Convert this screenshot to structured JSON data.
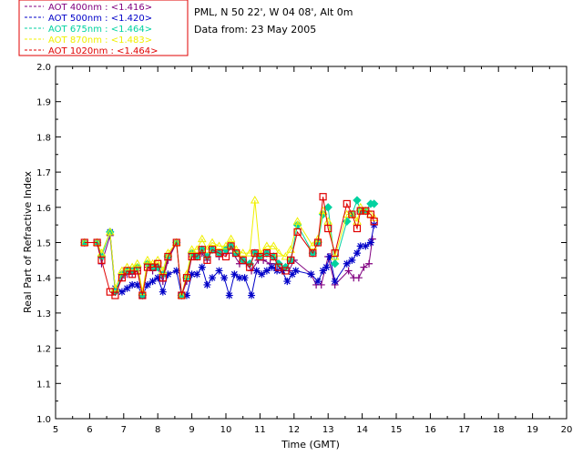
{
  "header": {
    "site": "PML, N 50 22', W 04 08', Alt 0m",
    "date": "Data from: 23 May 2005"
  },
  "chart_data": {
    "type": "line",
    "xlabel": "Time (GMT)",
    "ylabel": "Real Part of Refractive Index",
    "xlim": [
      5,
      20
    ],
    "ylim": [
      1.0,
      2.0
    ],
    "xticks": [
      "5",
      "6",
      "7",
      "8",
      "9",
      "10",
      "11",
      "12",
      "13",
      "14",
      "15",
      "16",
      "17",
      "18",
      "19",
      "20"
    ],
    "yticks": [
      "1.0",
      "1.1",
      "1.2",
      "1.3",
      "1.4",
      "1.5",
      "1.6",
      "1.7",
      "1.8",
      "1.9",
      "2.0"
    ],
    "legend_position": "top-left",
    "series": [
      {
        "name": "AOT  400nm : <1.416>",
        "color": "#800080",
        "marker": "plus",
        "points": [
          [
            5.85,
            1.5
          ],
          [
            6.22,
            1.5
          ],
          [
            6.35,
            1.44
          ],
          [
            6.6,
            1.52
          ],
          [
            6.75,
            1.36
          ],
          [
            6.95,
            1.4
          ],
          [
            7.1,
            1.41
          ],
          [
            7.25,
            1.41
          ],
          [
            7.4,
            1.42
          ],
          [
            7.55,
            1.35
          ],
          [
            7.7,
            1.43
          ],
          [
            7.85,
            1.42
          ],
          [
            8.0,
            1.43
          ],
          [
            8.15,
            1.39
          ],
          [
            8.3,
            1.45
          ],
          [
            8.55,
            1.5
          ],
          [
            8.7,
            1.35
          ],
          [
            8.85,
            1.39
          ],
          [
            9.0,
            1.46
          ],
          [
            9.15,
            1.46
          ],
          [
            9.3,
            1.47
          ],
          [
            9.45,
            1.45
          ],
          [
            9.6,
            1.48
          ],
          [
            9.8,
            1.46
          ],
          [
            10.0,
            1.47
          ],
          [
            10.2,
            1.47
          ],
          [
            10.4,
            1.44
          ],
          [
            10.6,
            1.44
          ],
          [
            10.75,
            1.42
          ],
          [
            10.95,
            1.45
          ],
          [
            11.1,
            1.45
          ],
          [
            11.3,
            1.44
          ],
          [
            11.5,
            1.44
          ],
          [
            11.7,
            1.42
          ],
          [
            11.85,
            1.42
          ],
          [
            12.0,
            1.45
          ],
          [
            12.5,
            1.41
          ],
          [
            12.65,
            1.38
          ],
          [
            12.8,
            1.38
          ],
          [
            13.0,
            1.46
          ],
          [
            13.2,
            1.38
          ],
          [
            13.6,
            1.42
          ],
          [
            13.75,
            1.4
          ],
          [
            13.9,
            1.4
          ],
          [
            14.05,
            1.43
          ],
          [
            14.2,
            1.44
          ],
          [
            14.3,
            1.51
          ]
        ]
      },
      {
        "name": "AOT  500nm : <1.420>",
        "color": "#0000c8",
        "marker": "star",
        "points": [
          [
            6.6,
            1.53
          ],
          [
            6.75,
            1.37
          ],
          [
            6.95,
            1.36
          ],
          [
            7.1,
            1.37
          ],
          [
            7.25,
            1.38
          ],
          [
            7.4,
            1.38
          ],
          [
            7.55,
            1.35
          ],
          [
            7.7,
            1.38
          ],
          [
            7.85,
            1.39
          ],
          [
            8.0,
            1.4
          ],
          [
            8.15,
            1.36
          ],
          [
            8.3,
            1.41
          ],
          [
            8.55,
            1.42
          ],
          [
            8.7,
            1.35
          ],
          [
            8.85,
            1.35
          ],
          [
            9.0,
            1.41
          ],
          [
            9.15,
            1.41
          ],
          [
            9.3,
            1.43
          ],
          [
            9.45,
            1.38
          ],
          [
            9.6,
            1.4
          ],
          [
            9.8,
            1.42
          ],
          [
            9.95,
            1.4
          ],
          [
            10.1,
            1.35
          ],
          [
            10.25,
            1.41
          ],
          [
            10.4,
            1.4
          ],
          [
            10.55,
            1.4
          ],
          [
            10.75,
            1.35
          ],
          [
            10.9,
            1.42
          ],
          [
            11.05,
            1.41
          ],
          [
            11.2,
            1.42
          ],
          [
            11.35,
            1.43
          ],
          [
            11.5,
            1.42
          ],
          [
            11.65,
            1.42
          ],
          [
            11.8,
            1.39
          ],
          [
            11.95,
            1.41
          ],
          [
            12.05,
            1.42
          ],
          [
            12.5,
            1.41
          ],
          [
            12.7,
            1.39
          ],
          [
            12.85,
            1.42
          ],
          [
            12.95,
            1.43
          ],
          [
            13.05,
            1.46
          ],
          [
            13.2,
            1.39
          ],
          [
            13.55,
            1.44
          ],
          [
            13.7,
            1.45
          ],
          [
            13.85,
            1.47
          ],
          [
            13.95,
            1.49
          ],
          [
            14.1,
            1.49
          ],
          [
            14.25,
            1.5
          ],
          [
            14.35,
            1.55
          ]
        ]
      },
      {
        "name": "AOT  675nm : <1.464>",
        "color": "#00d2a0",
        "marker": "diamond",
        "points": [
          [
            5.85,
            1.5
          ],
          [
            6.22,
            1.5
          ],
          [
            6.35,
            1.46
          ],
          [
            6.6,
            1.53
          ],
          [
            6.75,
            1.36
          ],
          [
            6.95,
            1.41
          ],
          [
            7.1,
            1.42
          ],
          [
            7.25,
            1.42
          ],
          [
            7.4,
            1.43
          ],
          [
            7.55,
            1.35
          ],
          [
            7.7,
            1.44
          ],
          [
            7.85,
            1.43
          ],
          [
            8.0,
            1.43
          ],
          [
            8.15,
            1.41
          ],
          [
            8.3,
            1.46
          ],
          [
            8.55,
            1.5
          ],
          [
            8.7,
            1.35
          ],
          [
            8.85,
            1.4
          ],
          [
            9.0,
            1.47
          ],
          [
            9.15,
            1.46
          ],
          [
            9.3,
            1.48
          ],
          [
            9.45,
            1.46
          ],
          [
            9.6,
            1.48
          ],
          [
            9.8,
            1.47
          ],
          [
            10.0,
            1.48
          ],
          [
            10.15,
            1.49
          ],
          [
            10.3,
            1.47
          ],
          [
            10.5,
            1.45
          ],
          [
            10.7,
            1.44
          ],
          [
            10.85,
            1.47
          ],
          [
            11.0,
            1.46
          ],
          [
            11.2,
            1.47
          ],
          [
            11.4,
            1.46
          ],
          [
            11.55,
            1.44
          ],
          [
            11.75,
            1.43
          ],
          [
            11.9,
            1.45
          ],
          [
            12.1,
            1.55
          ],
          [
            12.55,
            1.47
          ],
          [
            12.7,
            1.5
          ],
          [
            12.85,
            1.58
          ],
          [
            13.0,
            1.6
          ],
          [
            13.2,
            1.44
          ],
          [
            13.55,
            1.56
          ],
          [
            13.7,
            1.58
          ],
          [
            13.85,
            1.62
          ],
          [
            13.95,
            1.59
          ],
          [
            14.1,
            1.59
          ],
          [
            14.25,
            1.61
          ],
          [
            14.35,
            1.61
          ]
        ]
      },
      {
        "name": "AOT  870nm : <1.483>",
        "color": "#f0f000",
        "marker": "triangle",
        "points": [
          [
            5.85,
            1.5
          ],
          [
            6.22,
            1.5
          ],
          [
            6.35,
            1.47
          ],
          [
            6.6,
            1.53
          ],
          [
            6.75,
            1.37
          ],
          [
            6.95,
            1.42
          ],
          [
            7.1,
            1.43
          ],
          [
            7.25,
            1.43
          ],
          [
            7.4,
            1.44
          ],
          [
            7.55,
            1.36
          ],
          [
            7.7,
            1.45
          ],
          [
            7.85,
            1.44
          ],
          [
            8.0,
            1.45
          ],
          [
            8.15,
            1.42
          ],
          [
            8.3,
            1.47
          ],
          [
            8.55,
            1.5
          ],
          [
            8.7,
            1.35
          ],
          [
            8.85,
            1.41
          ],
          [
            9.0,
            1.48
          ],
          [
            9.15,
            1.48
          ],
          [
            9.3,
            1.51
          ],
          [
            9.45,
            1.48
          ],
          [
            9.6,
            1.5
          ],
          [
            9.8,
            1.49
          ],
          [
            10.0,
            1.49
          ],
          [
            10.15,
            1.51
          ],
          [
            10.3,
            1.48
          ],
          [
            10.5,
            1.47
          ],
          [
            10.7,
            1.47
          ],
          [
            10.85,
            1.62
          ],
          [
            11.0,
            1.47
          ],
          [
            11.2,
            1.49
          ],
          [
            11.4,
            1.49
          ],
          [
            11.55,
            1.47
          ],
          [
            11.75,
            1.46
          ],
          [
            11.9,
            1.48
          ],
          [
            12.1,
            1.56
          ],
          [
            12.55,
            1.49
          ],
          [
            12.7,
            1.51
          ],
          [
            12.85,
            1.59
          ],
          [
            13.0,
            1.56
          ],
          [
            13.2,
            1.46
          ],
          [
            13.55,
            1.58
          ],
          [
            13.7,
            1.58
          ],
          [
            13.85,
            1.56
          ],
          [
            13.95,
            1.6
          ],
          [
            14.1,
            1.59
          ],
          [
            14.25,
            1.58
          ],
          [
            14.35,
            1.57
          ]
        ]
      },
      {
        "name": "AOT 1020nm : <1.464>",
        "color": "#e00000",
        "marker": "square",
        "points": [
          [
            5.85,
            1.5
          ],
          [
            6.22,
            1.5
          ],
          [
            6.35,
            1.45
          ],
          [
            6.6,
            1.36
          ],
          [
            6.75,
            1.35
          ],
          [
            6.95,
            1.4
          ],
          [
            7.1,
            1.42
          ],
          [
            7.25,
            1.41
          ],
          [
            7.4,
            1.42
          ],
          [
            7.55,
            1.35
          ],
          [
            7.7,
            1.43
          ],
          [
            7.85,
            1.43
          ],
          [
            8.0,
            1.44
          ],
          [
            8.15,
            1.4
          ],
          [
            8.3,
            1.46
          ],
          [
            8.55,
            1.5
          ],
          [
            8.7,
            1.35
          ],
          [
            8.85,
            1.4
          ],
          [
            9.0,
            1.46
          ],
          [
            9.15,
            1.46
          ],
          [
            9.3,
            1.48
          ],
          [
            9.45,
            1.45
          ],
          [
            9.6,
            1.48
          ],
          [
            9.8,
            1.47
          ],
          [
            10.0,
            1.46
          ],
          [
            10.15,
            1.49
          ],
          [
            10.3,
            1.47
          ],
          [
            10.5,
            1.45
          ],
          [
            10.7,
            1.43
          ],
          [
            10.85,
            1.47
          ],
          [
            11.0,
            1.46
          ],
          [
            11.2,
            1.47
          ],
          [
            11.4,
            1.46
          ],
          [
            11.55,
            1.43
          ],
          [
            11.75,
            1.42
          ],
          [
            11.9,
            1.45
          ],
          [
            12.1,
            1.53
          ],
          [
            12.55,
            1.47
          ],
          [
            12.7,
            1.5
          ],
          [
            12.85,
            1.63
          ],
          [
            13.0,
            1.54
          ],
          [
            13.2,
            1.47
          ],
          [
            13.55,
            1.61
          ],
          [
            13.7,
            1.58
          ],
          [
            13.85,
            1.54
          ],
          [
            13.95,
            1.59
          ],
          [
            14.1,
            1.59
          ],
          [
            14.25,
            1.58
          ],
          [
            14.35,
            1.56
          ]
        ]
      }
    ]
  }
}
